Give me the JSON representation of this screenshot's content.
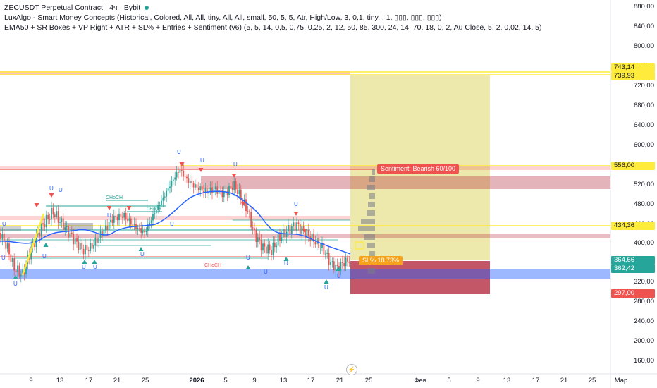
{
  "legend": {
    "symbol_line": "ZECUSDT Perpetual Contract · 4ч · Bybit",
    "indicator1": "LuxAlgo - Smart Money Concepts (Historical, Colored, All, All, tiny, All, All, small, 50, 5, 5, Atr, High/Low, 3, 0,1, tiny, , 1, ▯▯▯, ▯▯▯, ▯▯▯)",
    "indicator2": "EMA50 + SR Boxes + VP Right + ATR + SL% + Entries + Sentiment (v6) (5, 5, 14, 0,5, 0,75, 0,25, 2, 12, 50, 85, 300, 24, 14, 70, 18, 0, 2, Au Close, 5, 2, 0,02, 14, 5)"
  },
  "price_axis": {
    "ticks": [
      "880,00",
      "840,00",
      "800,00",
      "760,00",
      "720,00",
      "680,00",
      "640,00",
      "600,00",
      "560,00",
      "520,00",
      "480,00",
      "440,00",
      "400,00",
      "360,00",
      "320,00",
      "280,00",
      "240,00",
      "200,00",
      "160,00"
    ]
  },
  "price_tags": [
    {
      "text": "743,14",
      "bg": "#ffeb3b",
      "fg": "#131722"
    },
    {
      "text": "739,93",
      "bg": "#ffeb3b",
      "fg": "#131722"
    },
    {
      "text": "556,00",
      "bg": "#ffeb3b",
      "fg": "#131722"
    },
    {
      "text": "434,36",
      "bg": "#ffeb3b",
      "fg": "#131722"
    },
    {
      "text": "364,66",
      "bg": "#26a69a",
      "fg": "#ffffff"
    },
    {
      "text": "362,42",
      "bg": "#26a69a",
      "fg": "#ffffff"
    },
    {
      "text": "297,00",
      "bg": "#ef5350",
      "fg": "#ffffff"
    }
  ],
  "time_axis": {
    "labels": [
      "9",
      "13",
      "17",
      "21",
      "25",
      "2026",
      "5",
      "9",
      "13",
      "17",
      "21",
      "25",
      "Фев",
      "5",
      "9",
      "13",
      "17",
      "21",
      "25",
      "Мар"
    ]
  },
  "annotations": {
    "sentiment": "Sentiment: Bearish 60/100",
    "sl": "SL% 18.73%",
    "choch_labels": [
      "CHoCH",
      "CHoCH",
      "CHoCH"
    ],
    "bolt": "⚡"
  },
  "colors": {
    "yellow_line": "#ffeb3b",
    "red_line": "#ef5350",
    "ema": "#2962ff",
    "green_zone": "rgba(214,206,70,0.45)",
    "red_zone": "rgba(178,40,60,0.78)",
    "blue_band": "rgba(41,98,255,0.45)"
  }
}
